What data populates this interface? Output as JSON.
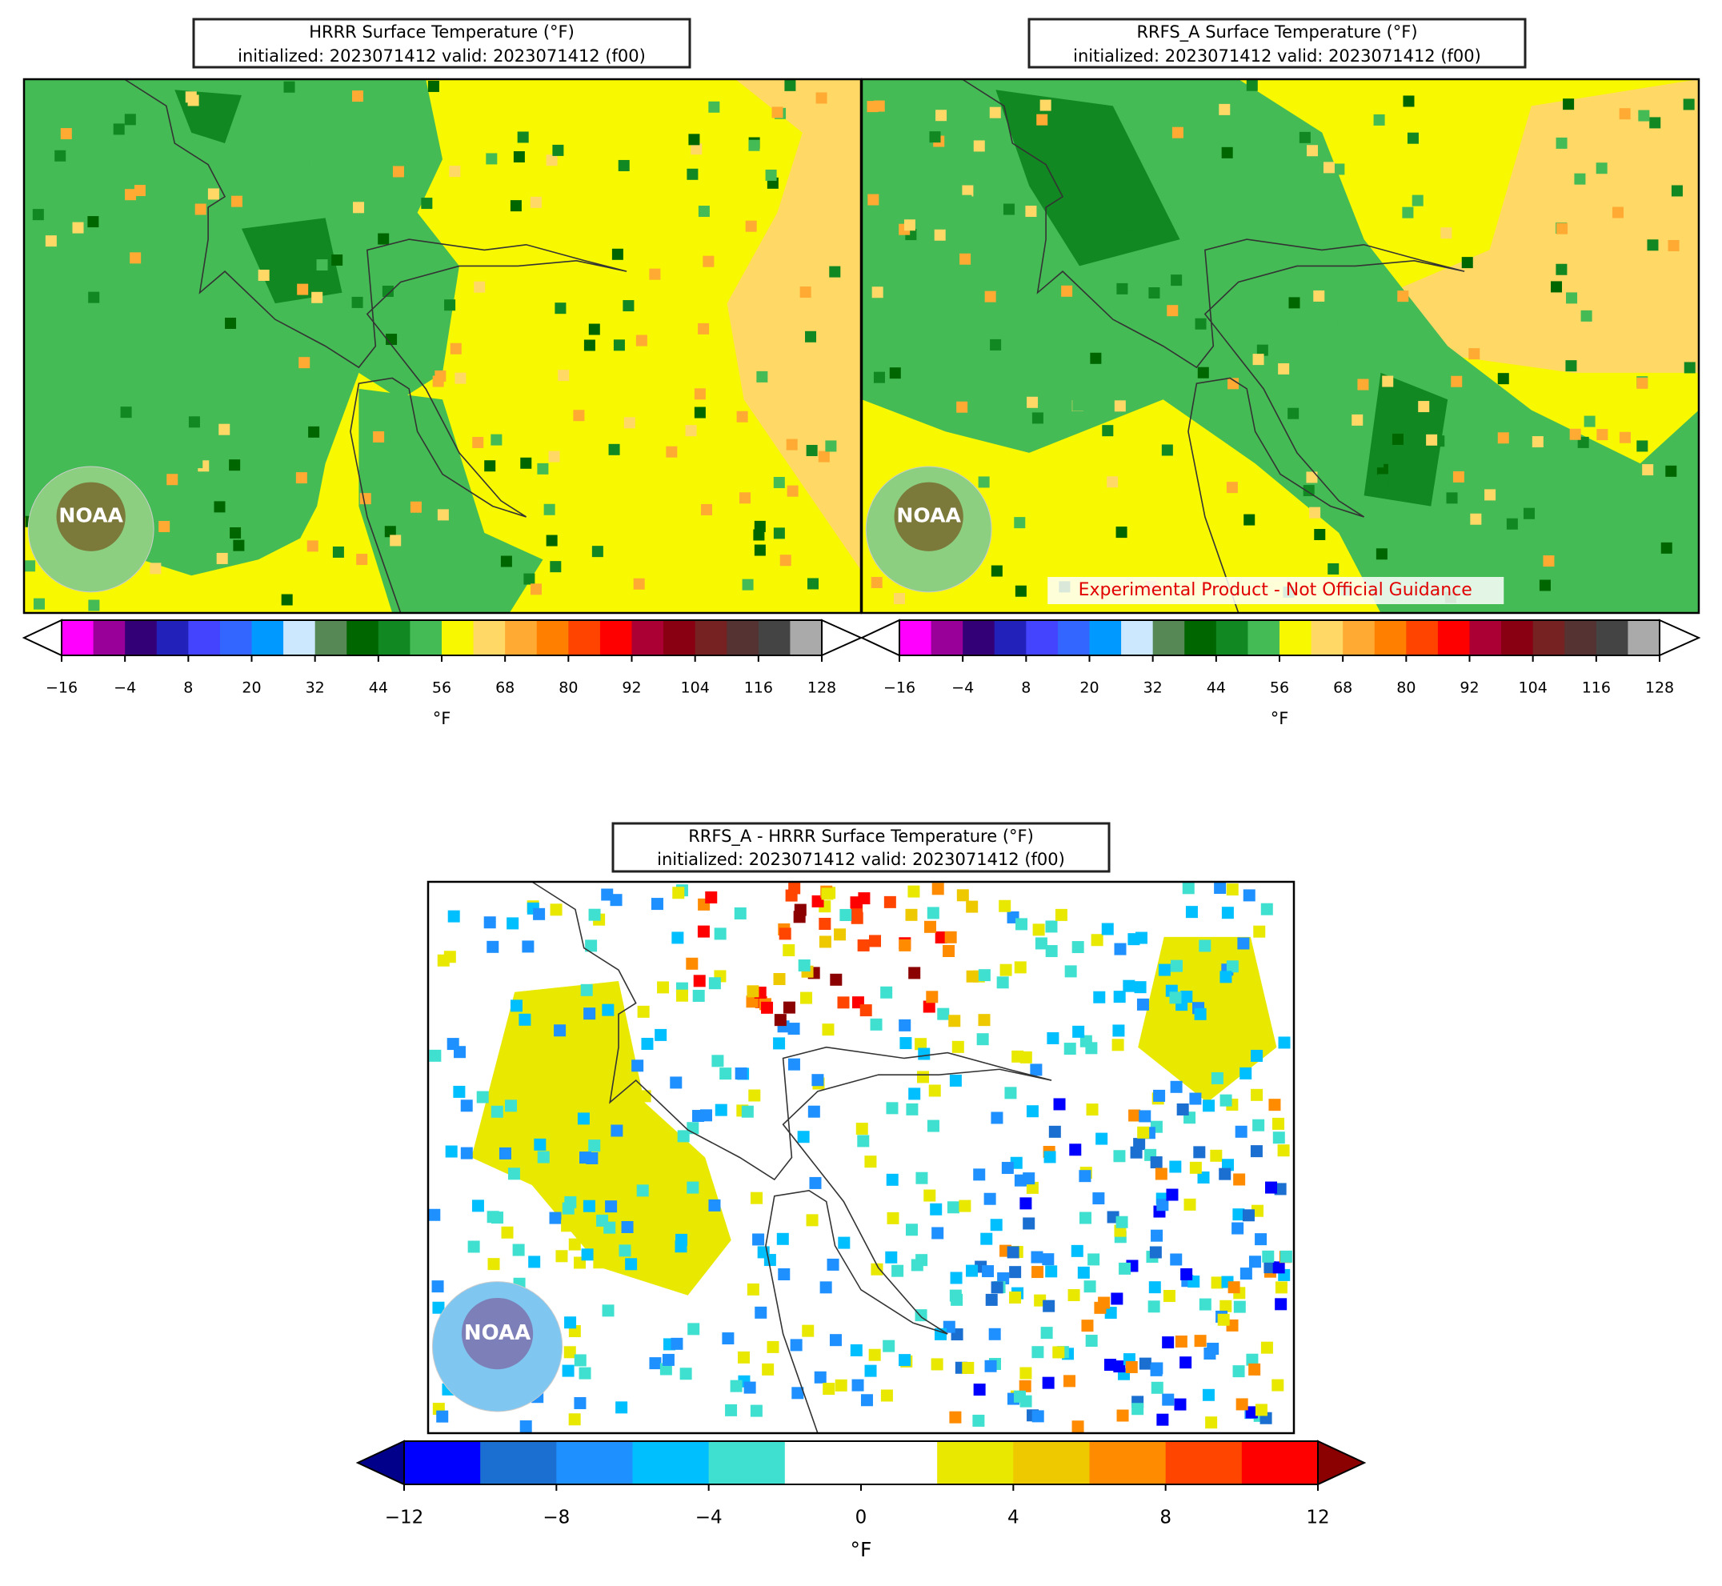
{
  "panels": [
    {
      "title_line1": "HRRR Surface Temperature (°F)",
      "title_line2": "initialized: 2023071412 valid: 2023071412 (f00)",
      "logo": "NOAA",
      "colorbar": {
        "ticks": [
          "−16",
          "−4",
          "8",
          "20",
          "32",
          "44",
          "56",
          "68",
          "80",
          "92",
          "104",
          "116",
          "128"
        ],
        "label": "°F",
        "colors": [
          "#ff00ff",
          "#990099",
          "#330077",
          "#2222bb",
          "#4444ff",
          "#3366ff",
          "#0099ff",
          "#cce8ff",
          "#558855",
          "#006600",
          "#118822",
          "#44bb55",
          "#f8f800",
          "#ffd866",
          "#ffaa33",
          "#ff7f00",
          "#ff4400",
          "#ff0000",
          "#aa0033",
          "#880011",
          "#772222",
          "#553333",
          "#444444",
          "#aaaaaa"
        ],
        "extend_colors": [
          "#ffffff",
          "#ffffff"
        ]
      }
    },
    {
      "title_line1": "RRFS_A Surface Temperature (°F)",
      "title_line2": "initialized: 2023071412 valid: 2023071412 (f00)",
      "logo": "NOAA",
      "watermark": "Experimental Product - Not Official Guidance",
      "colorbar": {
        "ticks": [
          "−16",
          "−4",
          "8",
          "20",
          "32",
          "44",
          "56",
          "68",
          "80",
          "92",
          "104",
          "116",
          "128"
        ],
        "label": "°F",
        "colors": [
          "#ff00ff",
          "#990099",
          "#330077",
          "#2222bb",
          "#4444ff",
          "#3366ff",
          "#0099ff",
          "#cce8ff",
          "#558855",
          "#006600",
          "#118822",
          "#44bb55",
          "#f8f800",
          "#ffd866",
          "#ffaa33",
          "#ff7f00",
          "#ff4400",
          "#ff0000",
          "#aa0033",
          "#880011",
          "#772222",
          "#553333",
          "#444444",
          "#aaaaaa"
        ],
        "extend_colors": [
          "#ffffff",
          "#ffffff"
        ]
      }
    },
    {
      "title_line1": "RRFS_A - HRRR Surface Temperature (°F)",
      "title_line2": "initialized: 2023071412 valid: 2023071412 (f00)",
      "logo": "NOAA",
      "colorbar": {
        "ticks": [
          "−12",
          "−8",
          "−4",
          "0",
          "4",
          "8",
          "12"
        ],
        "label": "°F",
        "colors": [
          "#0000ff",
          "#1a6fd0",
          "#1e90ff",
          "#00bfff",
          "#40e0d0",
          "#ffffff",
          "#ffffff",
          "#e8e800",
          "#eec900",
          "#ff8c00",
          "#ff4500",
          "#ff0000"
        ],
        "extend_colors": [
          "#00008b",
          "#8b0000"
        ]
      }
    }
  ]
}
